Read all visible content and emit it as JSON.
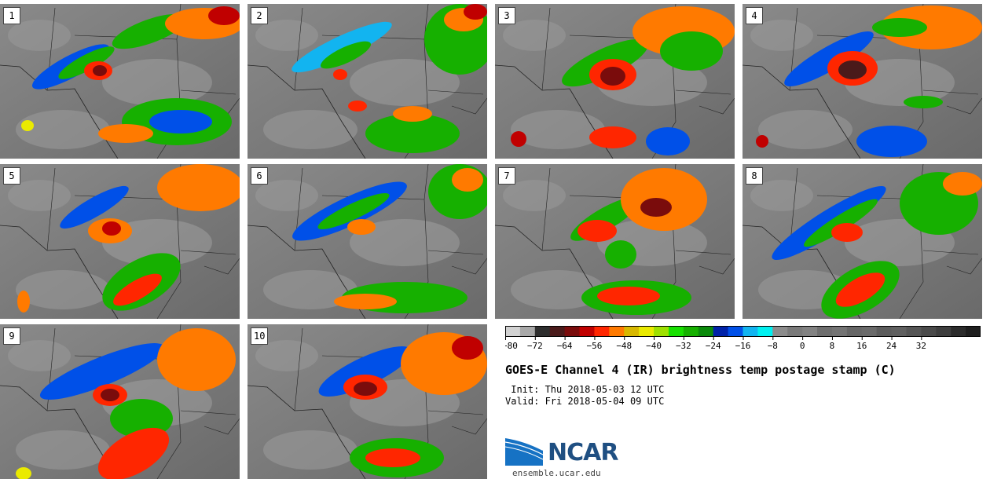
{
  "panels": [
    {
      "label": "1"
    },
    {
      "label": "2"
    },
    {
      "label": "3"
    },
    {
      "label": "4"
    },
    {
      "label": "5"
    },
    {
      "label": "6"
    },
    {
      "label": "7"
    },
    {
      "label": "8"
    },
    {
      "label": "9"
    },
    {
      "label": "10"
    }
  ],
  "colorbar": {
    "ticks": [
      "−80",
      "−72",
      "−64",
      "−56",
      "−48",
      "−40",
      "−32",
      "−24",
      "−16",
      "−8",
      "0",
      "8",
      "16",
      "24",
      "32"
    ],
    "colors": [
      "#d2d2d2",
      "#a8a8a8",
      "#2e2e2e",
      "#4a1a1a",
      "#7a0c0c",
      "#c00000",
      "#ff2600",
      "#ff7a00",
      "#d8b800",
      "#eaea00",
      "#9ee000",
      "#18e000",
      "#16b000",
      "#0a8a0a",
      "#0022a8",
      "#0050e8",
      "#12b4f0",
      "#00f0f0",
      "#8c8c8c",
      "#7a7a7a",
      "#828282",
      "#6e6e6e",
      "#747474",
      "#666666",
      "#6a6a6a",
      "#5c5c5c",
      "#606060",
      "#555555",
      "#4a4a4a",
      "#3e3e3e",
      "#2c2c2c",
      "#1e1e1e"
    ]
  },
  "title": "GOES-E Channel 4 (IR) brightness temp postage stamp (C)",
  "init_line": " Init: Thu 2018-05-03 12 UTC",
  "valid_line": "Valid: Fri 2018-05-04 09 UTC",
  "logo": {
    "text": "NCAR",
    "url": "ensemble.ucar.edu"
  }
}
